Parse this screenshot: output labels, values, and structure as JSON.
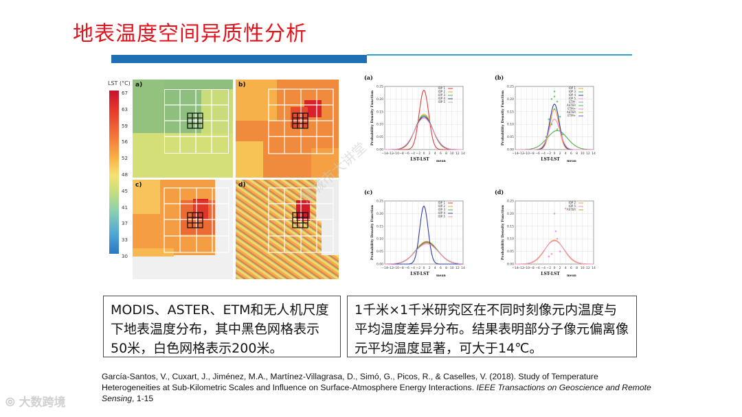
{
  "title": "地表温度空间异质性分析",
  "colorbar": {
    "title": "LST (°C)",
    "ticks": [
      "67",
      "63",
      "59",
      "56",
      "52",
      "48",
      "45",
      "41",
      "37",
      "33",
      "30"
    ]
  },
  "maps": [
    {
      "label": "a)"
    },
    {
      "label": "b)"
    },
    {
      "label": "c)"
    },
    {
      "label": "d)"
    }
  ],
  "chart_data": [
    {
      "type": "line",
      "panel_label": "(a)",
      "xlabel": "LST-LST",
      "xlabel_sub": "mean",
      "ylabel": "Probability Density Function",
      "xlim": [
        -14,
        14
      ],
      "ylim": [
        0,
        0.25
      ],
      "x_ticks": [
        "−14",
        "−12",
        "−10",
        "−8",
        "−6",
        "−4",
        "−2",
        "0",
        "2",
        "4",
        "6",
        "8",
        "10",
        "12",
        "14"
      ],
      "y_ticks": [
        "0.00",
        "0.05",
        "0.10",
        "0.15",
        "0.20",
        "0.25"
      ],
      "legend": [
        "IOP 1",
        "IOP 2",
        "IOP 3",
        "IOP 4",
        "IOP 5"
      ],
      "series": [
        {
          "name": "IOP 1",
          "color": "#e23a3a",
          "peak": 0.235,
          "center": 0,
          "sigma": 1.7
        },
        {
          "name": "IOP 2",
          "color": "#f2a23a",
          "peak": 0.14,
          "center": 0,
          "sigma": 3.0
        },
        {
          "name": "IOP 3",
          "color": "#49b04a",
          "peak": 0.135,
          "center": 0,
          "sigma": 3.1
        },
        {
          "name": "IOP 4",
          "color": "#2b3aa6",
          "peak": 0.13,
          "center": 0,
          "sigma": 3.2
        },
        {
          "name": "IOP 5",
          "color": "#f18fc6",
          "peak": 0.125,
          "center": 0,
          "sigma": 3.3
        }
      ]
    },
    {
      "type": "line",
      "panel_label": "(b)",
      "xlabel": "LST-LST",
      "xlabel_sub": "mean",
      "ylabel": "Probability Density Function",
      "xlim": [
        -14,
        14
      ],
      "ylim": [
        0,
        0.25
      ],
      "x_ticks": [
        "−14",
        "−12",
        "−10",
        "−8",
        "−6",
        "−4",
        "−2",
        "0",
        "2",
        "4",
        "6",
        "8",
        "10",
        "12",
        "14"
      ],
      "y_ticks": [
        "0.00",
        "0.05",
        "0.10",
        "0.15",
        "0.20",
        "0.25"
      ],
      "legend": [
        "IOP 1",
        "IOP 3",
        "IOP 4",
        "IOP 5",
        "ETM-",
        "ASTER",
        "ETM+",
        "ASTER",
        "ETM+"
      ],
      "series": [
        {
          "name": "IOP 1",
          "color": "#f2a23a",
          "peak": 0.16,
          "center": 0,
          "sigma": 1.6
        },
        {
          "name": "IOP 3",
          "color": "#49b04a",
          "peak": 0.075,
          "center": 1,
          "sigma": 3.6
        },
        {
          "name": "IOP 4",
          "color": "#2b3aa6",
          "peak": 0.18,
          "center": 0,
          "sigma": 1.7
        },
        {
          "name": "IOP 5",
          "color": "#f18fc6",
          "peak": 0.12,
          "center": 0,
          "sigma": 2.0
        }
      ]
    },
    {
      "type": "line",
      "panel_label": "(c)",
      "xlabel": "LST-LST",
      "xlabel_sub": "mean",
      "ylabel": "Probability Density Function",
      "xlim": [
        -14,
        14
      ],
      "ylim": [
        0,
        0.25
      ],
      "x_ticks": [
        "−14",
        "−12",
        "−10",
        "−8",
        "−6",
        "−4",
        "−2",
        "0",
        "2",
        "4",
        "6",
        "8",
        "10",
        "12",
        "14"
      ],
      "y_ticks": [
        "0.00",
        "0.05",
        "0.10",
        "0.15",
        "0.20",
        "0.25"
      ],
      "legend": [
        "IOP 1",
        "IOP 2",
        "IOP 3",
        "IOP 4",
        "IOP 5"
      ],
      "series": [
        {
          "name": "IOP 1",
          "color": "#e23a3a",
          "peak": 0.085,
          "center": 1,
          "sigma": 4.0
        },
        {
          "name": "IOP 2",
          "color": "#f2a23a",
          "peak": 0.09,
          "center": 1,
          "sigma": 3.9
        },
        {
          "name": "IOP 3",
          "color": "#49b04a",
          "peak": 0.088,
          "center": 1,
          "sigma": 4.0
        },
        {
          "name": "IOP 4",
          "color": "#2b3aa6",
          "peak": 0.23,
          "center": 0,
          "sigma": 1.5
        },
        {
          "name": "IOP 5",
          "color": "#f18fc6",
          "peak": 0.08,
          "center": 1,
          "sigma": 4.2
        }
      ]
    },
    {
      "type": "line",
      "panel_label": "(d)",
      "xlabel": "LST-LST",
      "xlabel_sub": "mean",
      "ylabel": "Probability Density Function",
      "xlim": [
        -14,
        14
      ],
      "ylim": [
        0,
        0.25
      ],
      "x_ticks": [
        "−14",
        "−12",
        "−10",
        "−8",
        "−6",
        "−4",
        "−2",
        "0",
        "2",
        "4",
        "6",
        "8",
        "10",
        "12",
        "14"
      ],
      "y_ticks": [
        "0.00",
        "0.05",
        "0.10",
        "0.15",
        "0.20",
        "0.25"
      ],
      "legend": [
        "IOP 2",
        "IOP 5",
        "ASTER"
      ],
      "series": [
        {
          "name": "IOP 2",
          "color": "#f2a23a",
          "peak": 0.095,
          "center": 0,
          "sigma": 3.4
        },
        {
          "name": "IOP 5",
          "color": "#f18fc6",
          "peak": 0.092,
          "center": 0,
          "sigma": 3.6
        }
      ]
    }
  ],
  "box_left": "MODIS、ASTER、ETM和无人机尺度下地表温度分布，其中黑色网格表示50米，白色网格表示200米。",
  "box_right": "1千米×1千米研究区在不同时刻像元内温度与平均温度差异分布。结果表明部分子像元偏离像元平均温度显著，可大于14℃。",
  "citation": {
    "plain": "García-Santos, V., Cuxart, J., Jiménez, M.A., Martínez-Villagrasa, D., Simó, G., Picos, R., & Caselles, V. (2018). Study of Temperature Heterogeneities at Sub-Kilometric Scales and Influence on Surface-Atmosphere Energy Interactions. ",
    "journal": "IEEE Transactions on Geoscience and Remote Sensing",
    "pages": ", 1-15"
  },
  "logo": "大数跨境",
  "watermark": "慧城市大讲堂"
}
